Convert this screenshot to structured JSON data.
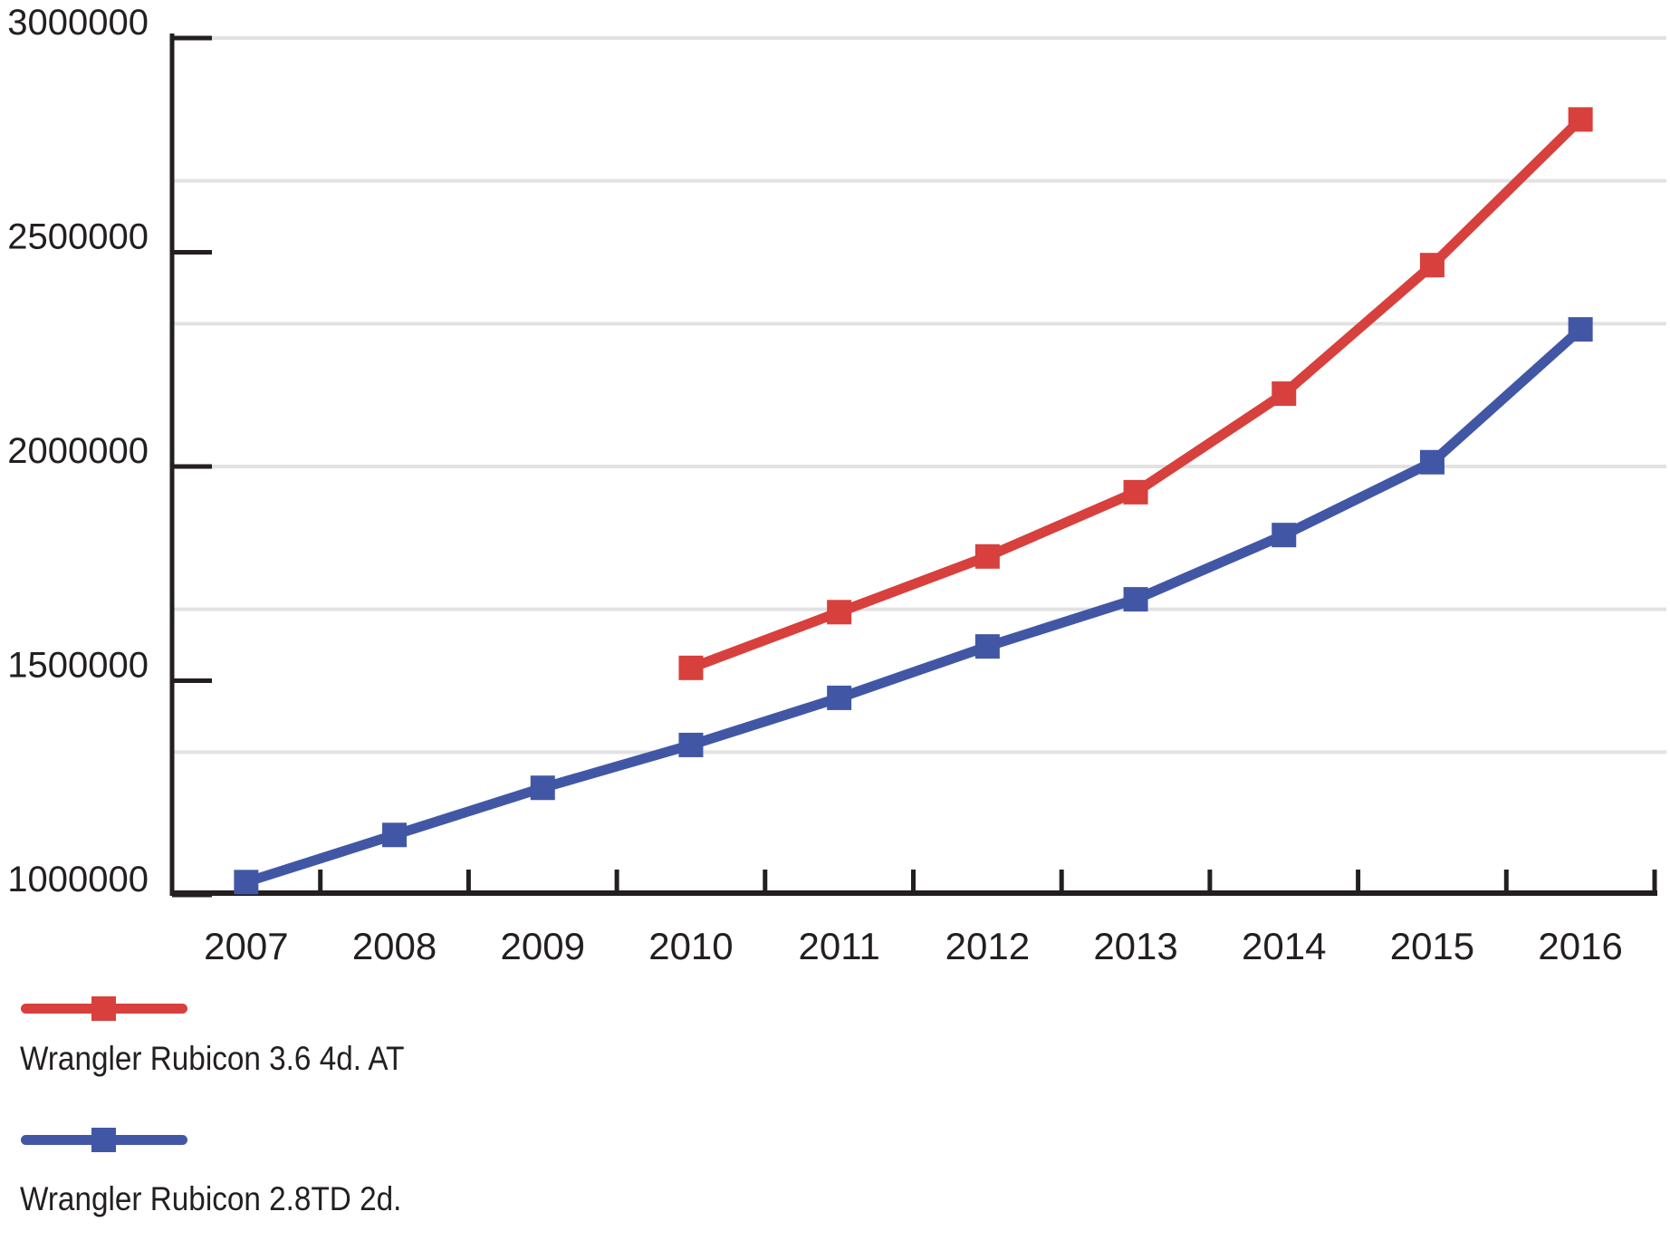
{
  "chart_data": {
    "type": "line",
    "title": "",
    "xlabel": "",
    "ylabel": "",
    "x_categories": [
      "2007",
      "2008",
      "2009",
      "2010",
      "2011",
      "2012",
      "2013",
      "2014",
      "2015",
      "2016"
    ],
    "series": [
      {
        "name": "Wrangler Rubicon 3.6 4d. AT",
        "color": "#d7403c",
        "marker": "square",
        "values": [
          null,
          null,
          null,
          1530000,
          1660000,
          1790000,
          1940000,
          2170000,
          2470000,
          2810000
        ]
      },
      {
        "name": "Wrangler Rubicon 2.8TD 2d.",
        "color": "#4157a5",
        "marker": "square",
        "values": [
          1030000,
          1140000,
          1250000,
          1350000,
          1460000,
          1580000,
          1690000,
          1840000,
          2010000,
          2320000
        ]
      }
    ],
    "ylim": [
      1000000,
      3000000
    ],
    "y_tick_values": [
      3000000,
      2500000,
      2000000,
      1500000,
      1000000
    ],
    "y_tick_labels": [
      "3000000",
      "2500000",
      "2000000",
      "1500000",
      "1000000"
    ],
    "gridline_values": [
      3000000,
      2666667,
      2333333,
      2000000,
      1666667,
      1333333
    ],
    "grid": "horizontal-only",
    "legend_position": "bottom-left"
  },
  "legend": {
    "items": [
      {
        "label": "Wrangler Rubicon 3.6 4d. AT",
        "color": "#d7403c"
      },
      {
        "label": "Wrangler Rubicon 2.8TD 2d.",
        "color": "#4157a5"
      }
    ]
  },
  "styles": {
    "background": "#ffffff",
    "axis_color": "#231f20",
    "grid_color": "#e2e2e2",
    "text_color": "#231f20"
  }
}
